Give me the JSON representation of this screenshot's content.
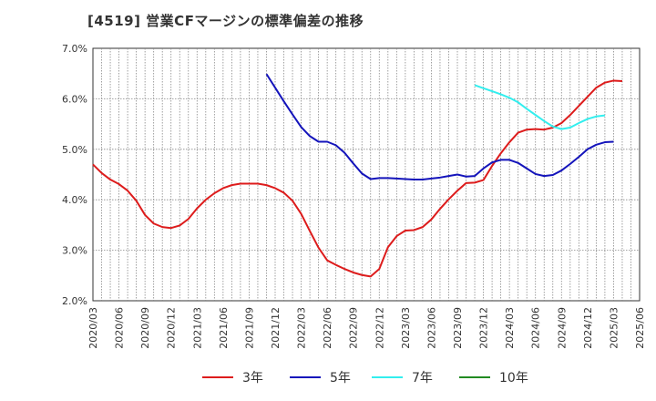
{
  "chart_data": {
    "type": "line",
    "title": "[4519]  営業CFマージンの標準偏差の推移",
    "ylim": [
      2.0,
      7.0
    ],
    "yticks": [
      "2.0%",
      "3.0%",
      "4.0%",
      "5.0%",
      "6.0%",
      "7.0%"
    ],
    "ytick_values": [
      2.0,
      3.0,
      4.0,
      5.0,
      6.0,
      7.0
    ],
    "xticks": [
      "2020/03",
      "2020/06",
      "2020/09",
      "2020/12",
      "2021/03",
      "2021/06",
      "2021/09",
      "2021/12",
      "2022/03",
      "2022/06",
      "2022/09",
      "2022/12",
      "2023/03",
      "2023/06",
      "2023/09",
      "2023/12",
      "2024/03",
      "2024/06",
      "2024/09",
      "2024/12",
      "2025/03",
      "2025/06"
    ],
    "x_start": "2020/03",
    "grid": true,
    "legend_placement": "bottom",
    "series": [
      {
        "name": "3年",
        "color": "#dd1c1c",
        "start": "2020/03",
        "values": [
          4.7,
          4.53,
          4.4,
          4.31,
          4.18,
          3.98,
          3.7,
          3.53,
          3.46,
          3.44,
          3.49,
          3.62,
          3.83,
          4.0,
          4.13,
          4.23,
          4.29,
          4.32,
          4.32,
          4.32,
          4.29,
          4.23,
          4.14,
          3.98,
          3.72,
          3.38,
          3.05,
          2.8,
          2.71,
          2.63,
          2.56,
          2.51,
          2.48,
          2.63,
          3.06,
          3.28,
          3.39,
          3.4,
          3.46,
          3.61,
          3.82,
          4.01,
          4.18,
          4.33,
          4.34,
          4.39,
          4.67,
          4.92,
          5.14,
          5.33,
          5.39,
          5.4,
          5.39,
          5.43,
          5.52,
          5.68,
          5.86,
          6.04,
          6.22,
          6.32,
          6.36,
          6.35
        ]
      },
      {
        "name": "5年",
        "color": "#1414bb",
        "start": "2021/11",
        "values": [
          6.49,
          6.22,
          5.95,
          5.69,
          5.44,
          5.26,
          5.15,
          5.15,
          5.08,
          4.93,
          4.72,
          4.52,
          4.41,
          4.43,
          4.43,
          4.42,
          4.41,
          4.4,
          4.4,
          4.42,
          4.44,
          4.47,
          4.5,
          4.46,
          4.47,
          4.62,
          4.74,
          4.79,
          4.79,
          4.73,
          4.62,
          4.51,
          4.47,
          4.49,
          4.58,
          4.71,
          4.85,
          5.0,
          5.09,
          5.14,
          5.15
        ]
      },
      {
        "name": "7年",
        "color": "#33eeee",
        "start": "2023/11",
        "values": [
          6.27,
          6.21,
          6.15,
          6.09,
          6.02,
          5.93,
          5.8,
          5.68,
          5.56,
          5.45,
          5.4,
          5.43,
          5.52,
          5.6,
          5.65,
          5.67
        ]
      },
      {
        "name": "10年",
        "color": "#228b22",
        "start": "2025/03",
        "values": []
      }
    ]
  }
}
